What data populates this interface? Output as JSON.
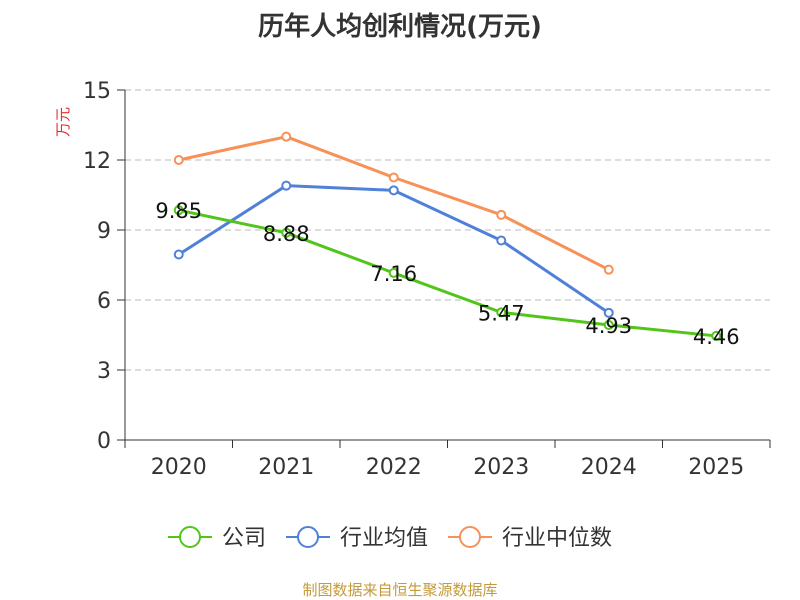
{
  "chart_data": {
    "type": "line",
    "title": "历年人均创利情况(万元)",
    "ylabel": "万元",
    "xlabel": "",
    "categories": [
      "2020",
      "2021",
      "2022",
      "2023",
      "2024",
      "2025"
    ],
    "ylim": [
      0,
      15
    ],
    "yticks": [
      0,
      3,
      6,
      9,
      12,
      15
    ],
    "grid": true,
    "legend_position": "bottom",
    "series": [
      {
        "name": "公司",
        "color": "#52c41a",
        "values": [
          9.85,
          8.88,
          7.16,
          5.47,
          4.93,
          4.46
        ],
        "labels": [
          "9.85",
          "8.88",
          "7.16",
          "5.47",
          "4.93",
          "4.46"
        ]
      },
      {
        "name": "行业均值",
        "color": "#4f81d9",
        "values": [
          7.95,
          10.9,
          10.7,
          8.55,
          5.45,
          null
        ]
      },
      {
        "name": "行业中位数",
        "color": "#f79158",
        "values": [
          12.0,
          13.0,
          11.25,
          9.65,
          7.3,
          null
        ]
      }
    ],
    "source": "制图数据来自恒生聚源数据库"
  }
}
